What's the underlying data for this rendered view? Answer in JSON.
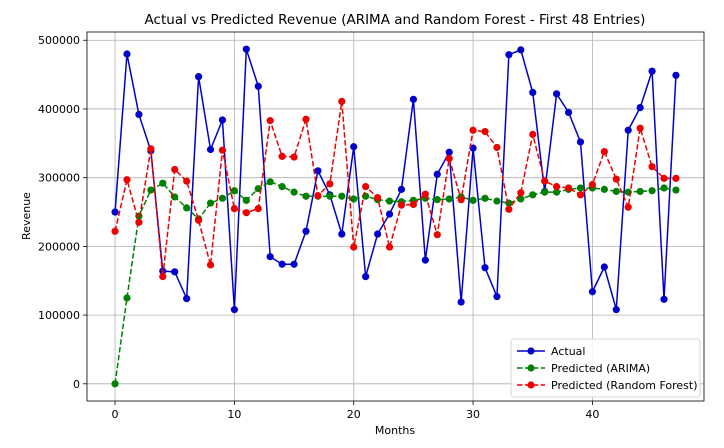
{
  "chart_data": {
    "type": "line",
    "title": "Actual vs Predicted Revenue (ARIMA and Random Forest - First 48 Entries)",
    "xlabel": "Months",
    "ylabel": "Revenue",
    "xlim": [
      -2.35,
      49.35
    ],
    "ylim": [
      -25000,
      512000
    ],
    "xticks": [
      0,
      10,
      20,
      30,
      40
    ],
    "yticks": [
      0,
      100000,
      200000,
      300000,
      400000,
      500000
    ],
    "grid": true,
    "legend_position": "bottom-right",
    "x": [
      0,
      1,
      2,
      3,
      4,
      5,
      6,
      7,
      8,
      9,
      10,
      11,
      12,
      13,
      14,
      15,
      16,
      17,
      18,
      19,
      20,
      21,
      22,
      23,
      24,
      25,
      26,
      27,
      28,
      29,
      30,
      31,
      32,
      33,
      34,
      35,
      36,
      37,
      38,
      39,
      40,
      41,
      42,
      43,
      44,
      45,
      46,
      47
    ],
    "series": [
      {
        "name": "Actual",
        "color": "#0000cc",
        "line_style": "solid",
        "values": [
          250000,
          480000,
          392000,
          339000,
          164000,
          163000,
          124000,
          447000,
          341000,
          384000,
          108000,
          487000,
          433000,
          185000,
          174000,
          174000,
          222000,
          310000,
          275000,
          218000,
          345000,
          156000,
          218000,
          247000,
          283000,
          414000,
          180000,
          305000,
          337000,
          119000,
          343000,
          169000,
          127000,
          479000,
          486000,
          424000,
          280000,
          422000,
          395000,
          352000,
          134000,
          170000,
          108000,
          369000,
          402000,
          455000,
          123000,
          449000
        ]
      },
      {
        "name": "Predicted (ARIMA)",
        "color": "#008000",
        "line_style": "dashed",
        "values": [
          0,
          125000,
          244000,
          282000,
          292000,
          272000,
          256000,
          240000,
          263000,
          270000,
          281000,
          267000,
          284000,
          294000,
          287000,
          279000,
          273000,
          273000,
          273000,
          273000,
          269000,
          273000,
          268000,
          266000,
          265000,
          267000,
          270000,
          268000,
          269000,
          272000,
          267000,
          270000,
          266000,
          263000,
          269000,
          275000,
          279000,
          279000,
          283000,
          285000,
          285000,
          283000,
          280000,
          279000,
          280000,
          281000,
          285000,
          282000
        ]
      },
      {
        "name": "Predicted (Random Forest)",
        "color": "#ee0000",
        "line_style": "dashed",
        "values": [
          222000,
          297000,
          235000,
          342000,
          156000,
          312000,
          295000,
          238000,
          173000,
          340000,
          255000,
          249000,
          255000,
          383000,
          331000,
          330000,
          385000,
          274000,
          291000,
          411000,
          199000,
          287000,
          271000,
          199000,
          260000,
          261000,
          276000,
          217000,
          328000,
          268000,
          369000,
          367000,
          344000,
          254000,
          278000,
          363000,
          295000,
          287000,
          285000,
          275000,
          290000,
          338000,
          298000,
          257000,
          372000,
          316000,
          299000,
          299000
        ]
      }
    ]
  }
}
